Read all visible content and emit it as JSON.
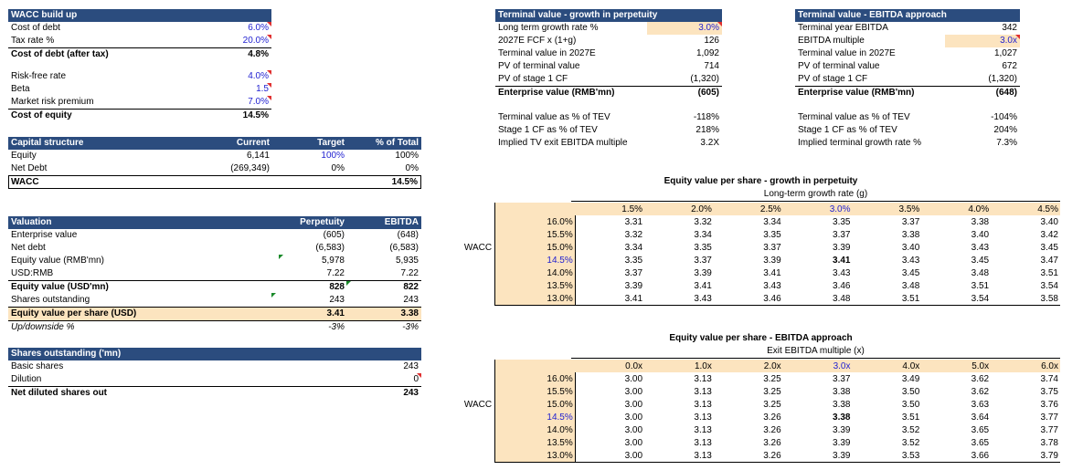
{
  "wacc": {
    "title": "WACC build up",
    "rows": [
      {
        "label": "Cost of debt",
        "value": "6.0%"
      },
      {
        "label": "Tax rate %",
        "value": "20.0%"
      },
      {
        "label": "Cost of debt (after tax)",
        "value": "4.8%"
      }
    ],
    "rows2": [
      {
        "label": "Risk-free rate",
        "value": "4.0%"
      },
      {
        "label": "Beta",
        "value": "1.5"
      },
      {
        "label": "Market risk premium",
        "value": "7.0%"
      },
      {
        "label": "Cost of equity",
        "value": "14.5%"
      }
    ]
  },
  "capital": {
    "title": "Capital structure",
    "h_current": "Current",
    "h_target": "Target",
    "h_total": "% of Total",
    "rows": [
      {
        "label": "Equity",
        "current": "6,141",
        "target": "100%",
        "total": "100%"
      },
      {
        "label": "Net Debt",
        "current": "(269,349)",
        "target": "0%",
        "total": "0%"
      }
    ],
    "wacc_label": "WACC",
    "wacc_value": "14.5%"
  },
  "valuation": {
    "title": "Valuation",
    "h_perp": "Perpetuity",
    "h_ebitda": "EBITDA",
    "rows": [
      {
        "label": "Enterprise value",
        "perp": "(605)",
        "ebitda": "(648)"
      },
      {
        "label": "Net debt",
        "perp": "(6,583)",
        "ebitda": "(6,583)"
      },
      {
        "label": "Equity value (RMB'mn)",
        "perp": "5,978",
        "ebitda": "5,935"
      },
      {
        "label": "USD:RMB",
        "perp": "7.22",
        "ebitda": "7.22"
      },
      {
        "label": "Equity value (USD'mn)",
        "perp": "828",
        "ebitda": "822"
      },
      {
        "label": "Shares outstanding",
        "perp": "243",
        "ebitda": "243"
      },
      {
        "label": "Equity value per share (USD)",
        "perp": "3.41",
        "ebitda": "3.38"
      },
      {
        "label": "Up/downside %",
        "perp": "-3%",
        "ebitda": "-3%"
      }
    ]
  },
  "shares": {
    "title": "Shares outstanding ('mn)",
    "rows": [
      {
        "label": "Basic shares",
        "value": "243"
      },
      {
        "label": "Dilution",
        "value": "0"
      },
      {
        "label": "Net diluted shares out",
        "value": "243"
      }
    ]
  },
  "tv_growth": {
    "title": "Terminal value - growth in perpetuity",
    "rows": [
      {
        "label": "Long term growth rate %",
        "value": "3.0%"
      },
      {
        "label": "2027E FCF x (1+g)",
        "value": "126"
      },
      {
        "label": "Terminal value in 2027E",
        "value": "1,092"
      },
      {
        "label": "PV of terminal value",
        "value": "714"
      },
      {
        "label": "PV of stage 1 CF",
        "value": "(1,320)"
      },
      {
        "label": "Enterprise value (RMB'mn)",
        "value": "(605)"
      }
    ],
    "rows2": [
      {
        "label": "Terminal value as % of TEV",
        "value": "-118%"
      },
      {
        "label": "Stage 1 CF as % of TEV",
        "value": "218%"
      },
      {
        "label": "Implied TV exit EBITDA multiple",
        "value": "3.2X"
      }
    ]
  },
  "tv_ebitda": {
    "title": "Terminal value - EBITDA approach",
    "rows": [
      {
        "label": "Terminal year EBITDA",
        "value": "342"
      },
      {
        "label": "EBITDA multiple",
        "value": "3.0x"
      },
      {
        "label": "Terminal value in 2027E",
        "value": "1,027"
      },
      {
        "label": "PV of terminal value",
        "value": "672"
      },
      {
        "label": "PV of stage 1 CF",
        "value": "(1,320)"
      },
      {
        "label": "Enterprise value (RMB'mn)",
        "value": "(648)"
      }
    ],
    "rows2": [
      {
        "label": "Terminal value as % of TEV",
        "value": "-104%"
      },
      {
        "label": "Stage 1 CF as % of TEV",
        "value": "204%"
      },
      {
        "label": "Implied terminal growth rate %",
        "value": "7.3%"
      }
    ]
  },
  "sens_growth": {
    "title": "Equity value per share - growth in perpetuity",
    "subtitle": "Long-term growth rate (g)",
    "row_axis": "WACC",
    "cols": [
      "1.5%",
      "2.0%",
      "2.5%",
      "3.0%",
      "3.5%",
      "4.0%",
      "4.5%"
    ],
    "rows": [
      {
        "wacc": "16.0%",
        "vals": [
          "3.31",
          "3.32",
          "3.34",
          "3.35",
          "3.37",
          "3.38",
          "3.40"
        ]
      },
      {
        "wacc": "15.5%",
        "vals": [
          "3.32",
          "3.34",
          "3.35",
          "3.37",
          "3.38",
          "3.40",
          "3.42"
        ]
      },
      {
        "wacc": "15.0%",
        "vals": [
          "3.34",
          "3.35",
          "3.37",
          "3.39",
          "3.40",
          "3.43",
          "3.45"
        ]
      },
      {
        "wacc": "14.5%",
        "vals": [
          "3.35",
          "3.37",
          "3.39",
          "3.41",
          "3.43",
          "3.45",
          "3.47"
        ]
      },
      {
        "wacc": "14.0%",
        "vals": [
          "3.37",
          "3.39",
          "3.41",
          "3.43",
          "3.45",
          "3.48",
          "3.51"
        ]
      },
      {
        "wacc": "13.5%",
        "vals": [
          "3.39",
          "3.41",
          "3.43",
          "3.46",
          "3.48",
          "3.51",
          "3.54"
        ]
      },
      {
        "wacc": "13.0%",
        "vals": [
          "3.41",
          "3.43",
          "3.46",
          "3.48",
          "3.51",
          "3.54",
          "3.58"
        ]
      }
    ]
  },
  "sens_ebitda": {
    "title": "Equity value per share - EBITDA approach",
    "subtitle": "Exit EBITDA multiple (x)",
    "row_axis": "WACC",
    "cols": [
      "0.0x",
      "1.0x",
      "2.0x",
      "3.0x",
      "4.0x",
      "5.0x",
      "6.0x"
    ],
    "rows": [
      {
        "wacc": "16.0%",
        "vals": [
          "3.00",
          "3.13",
          "3.25",
          "3.37",
          "3.49",
          "3.62",
          "3.74"
        ]
      },
      {
        "wacc": "15.5%",
        "vals": [
          "3.00",
          "3.13",
          "3.25",
          "3.38",
          "3.50",
          "3.62",
          "3.75"
        ]
      },
      {
        "wacc": "15.0%",
        "vals": [
          "3.00",
          "3.13",
          "3.25",
          "3.38",
          "3.50",
          "3.63",
          "3.76"
        ]
      },
      {
        "wacc": "14.5%",
        "vals": [
          "3.00",
          "3.13",
          "3.26",
          "3.38",
          "3.51",
          "3.64",
          "3.77"
        ]
      },
      {
        "wacc": "14.0%",
        "vals": [
          "3.00",
          "3.13",
          "3.26",
          "3.39",
          "3.52",
          "3.65",
          "3.77"
        ]
      },
      {
        "wacc": "13.5%",
        "vals": [
          "3.00",
          "3.13",
          "3.26",
          "3.39",
          "3.52",
          "3.65",
          "3.78"
        ]
      },
      {
        "wacc": "13.0%",
        "vals": [
          "3.00",
          "3.13",
          "3.26",
          "3.39",
          "3.53",
          "3.66",
          "3.79"
        ]
      }
    ]
  },
  "colors": {
    "header_bg": "#2b4c7e",
    "input_bg": "#fce4bf",
    "input_text": "#1f1fd0"
  }
}
